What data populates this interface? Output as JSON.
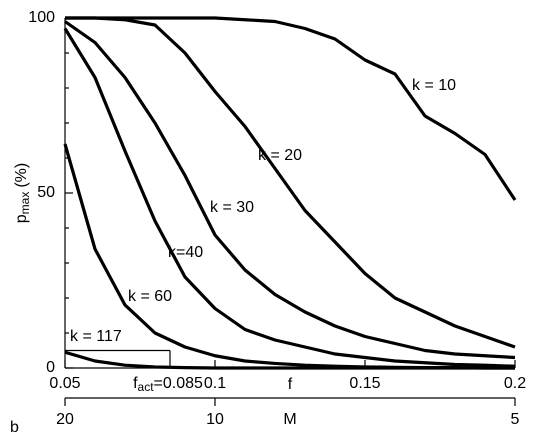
{
  "chart_data": {
    "type": "line",
    "panel_label": "b",
    "ylabel": "p",
    "ylabel_sub": "max",
    "ylabel_unit": "(%)",
    "xlabel": "f",
    "x": [
      0.05,
      0.06,
      0.07,
      0.08,
      0.09,
      0.1,
      0.11,
      0.12,
      0.13,
      0.14,
      0.15,
      0.16,
      0.17,
      0.18,
      0.19,
      0.2
    ],
    "series": [
      {
        "name": "k = 10",
        "color": "#000000",
        "values": [
          100,
          100,
          100,
          100,
          100,
          100,
          99.5,
          99,
          97,
          94,
          88,
          84,
          72,
          67,
          61,
          48
        ]
      },
      {
        "name": "k = 20",
        "color": "#000000",
        "values": [
          100,
          100,
          99.5,
          98,
          90,
          79,
          69,
          57,
          45,
          36,
          27,
          20,
          16,
          12,
          9,
          6
        ]
      },
      {
        "name": "k = 30",
        "color": "#000000",
        "values": [
          99,
          93,
          83,
          70,
          55,
          38,
          28,
          21,
          16,
          12,
          9,
          7,
          5,
          4,
          3.5,
          3
        ]
      },
      {
        "name": "k=40",
        "color": "#000000",
        "values": [
          97,
          83,
          62,
          42,
          26,
          17,
          11,
          8,
          6,
          4,
          3,
          2,
          1.5,
          1,
          0.8,
          0.5
        ]
      },
      {
        "name": "k = 60",
        "color": "#000000",
        "values": [
          64,
          34,
          18,
          10,
          6,
          3.5,
          2,
          1.3,
          0.8,
          0.5,
          0.3,
          0.2,
          0.1,
          0.1,
          0,
          0
        ]
      },
      {
        "name": "k = 117",
        "color": "#000000",
        "values": [
          4.5,
          2,
          0.8,
          0.3,
          0.1,
          0,
          0,
          0,
          0,
          0,
          0,
          0,
          0,
          0,
          0,
          0
        ]
      }
    ],
    "xlim": [
      0.05,
      0.2
    ],
    "xticks": [
      0.05,
      0.1,
      0.15,
      0.2
    ],
    "ylim": [
      0,
      100
    ],
    "yticks": [
      0,
      50,
      100
    ],
    "yminor_ticks": [
      10,
      20,
      30,
      40,
      60,
      70,
      80,
      90
    ],
    "marker": {
      "x": 0.085,
      "y": 5,
      "label_main": "f",
      "label_sub": "act",
      "label_rest": "=0.085"
    },
    "secondary_x": {
      "label": "M",
      "ticks": [
        20,
        10,
        5
      ]
    }
  }
}
